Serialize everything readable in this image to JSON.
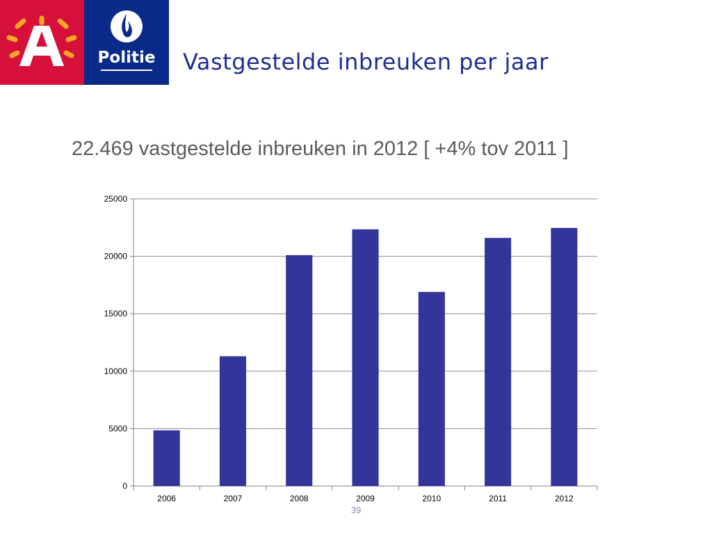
{
  "header": {
    "title": "Vastgestelde inbreuken per jaar",
    "logo_politie_text": "Politie"
  },
  "subtitle": "22.469 vastgestelde inbreuken in 2012 [ +4% tov 2011 ]",
  "page_number": "39",
  "colors": {
    "bar": "#34359a",
    "logo_red": "#d6103a",
    "logo_blue": "#0a2a8a",
    "sunburst": "#f5a623"
  },
  "chart_data": {
    "type": "bar",
    "categories": [
      "2006",
      "2007",
      "2008",
      "2009",
      "2010",
      "2011",
      "2012"
    ],
    "values": [
      4850,
      11300,
      20100,
      22350,
      16900,
      21600,
      22469
    ],
    "yticks": [
      "0",
      "5000",
      "10000",
      "15000",
      "20000",
      "25000"
    ],
    "ylim": [
      0,
      25000
    ],
    "grid": true
  }
}
